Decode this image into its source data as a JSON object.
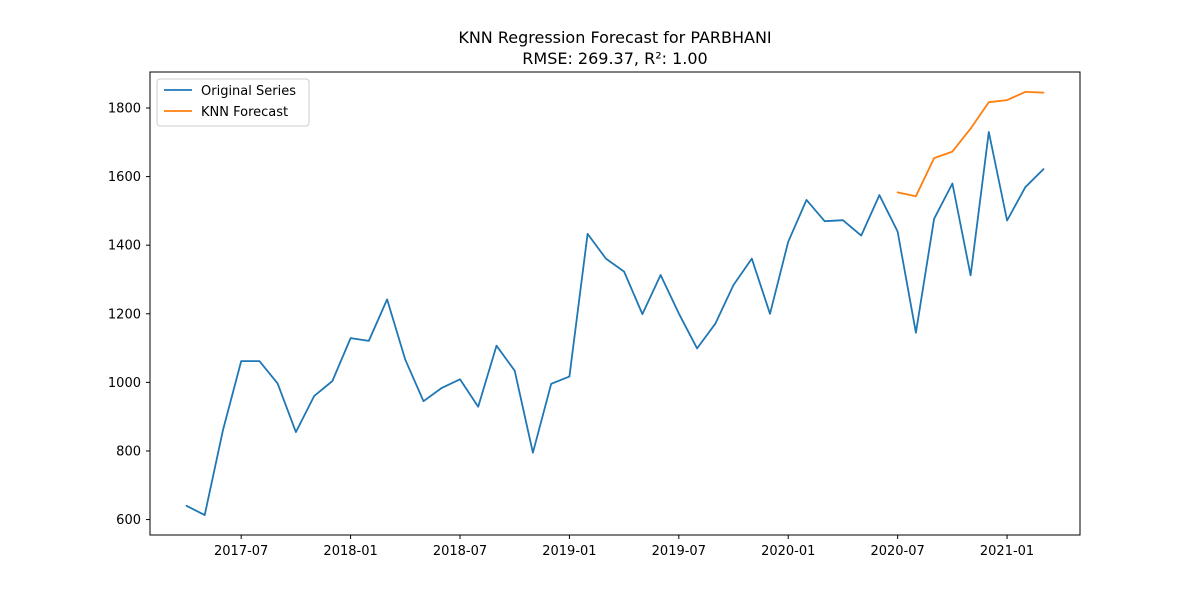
{
  "chart_data": {
    "type": "line",
    "title": "KNN Regression Forecast for PARBHANI",
    "subtitle": "RMSE: 269.37, R²: 1.00",
    "xlabel": "",
    "ylabel": "",
    "x_ticks": [
      "2017-07",
      "2018-01",
      "2018-07",
      "2019-01",
      "2019-07",
      "2020-01",
      "2020-07",
      "2021-01"
    ],
    "y_ticks": [
      600,
      800,
      1000,
      1200,
      1400,
      1600,
      1800
    ],
    "xlim": [
      "2017-02",
      "2021-05"
    ],
    "ylim": [
      555,
      1905
    ],
    "grid": false,
    "legend_position": "upper-left",
    "series": [
      {
        "name": "Original Series",
        "color": "#1f77b4",
        "x": [
          "2017-04",
          "2017-05",
          "2017-06",
          "2017-07",
          "2017-08",
          "2017-09",
          "2017-10",
          "2017-11",
          "2017-12",
          "2018-01",
          "2018-02",
          "2018-03",
          "2018-04",
          "2018-05",
          "2018-06",
          "2018-07",
          "2018-08",
          "2018-09",
          "2018-10",
          "2018-11",
          "2018-12",
          "2019-01",
          "2019-02",
          "2019-03",
          "2019-04",
          "2019-05",
          "2019-06",
          "2019-07",
          "2019-08",
          "2019-09",
          "2019-10",
          "2019-11",
          "2019-12",
          "2020-01",
          "2020-02",
          "2020-03",
          "2020-04",
          "2020-05",
          "2020-06",
          "2020-07",
          "2020-08",
          "2020-09",
          "2020-10",
          "2020-11",
          "2020-12",
          "2021-01",
          "2021-02",
          "2021-03"
        ],
        "values": [
          640,
          613,
          860,
          1062,
          1062,
          997,
          855,
          960,
          1004,
          1129,
          1121,
          1242,
          1066,
          945,
          984,
          1009,
          929,
          1107,
          1034,
          795,
          996,
          1017,
          1433,
          1361,
          1323,
          1199,
          1313,
          1201,
          1099,
          1171,
          1284,
          1361,
          1200,
          1410,
          1532,
          1470,
          1473,
          1428,
          1546,
          1440,
          1145,
          1477,
          1580,
          1312,
          1730,
          1472,
          1569,
          1622
        ]
      },
      {
        "name": "KNN Forecast",
        "color": "#ff7f0e",
        "x": [
          "2020-07",
          "2020-08",
          "2020-09",
          "2020-10",
          "2020-11",
          "2020-12",
          "2021-01",
          "2021-02",
          "2021-03"
        ],
        "values": [
          1554,
          1543,
          1654,
          1673,
          1740,
          1817,
          1823,
          1847,
          1845
        ]
      }
    ]
  }
}
